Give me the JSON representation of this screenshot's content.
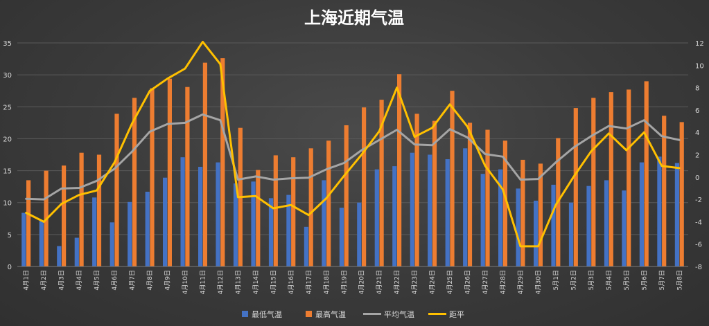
{
  "chart_data": {
    "type": "bar",
    "title": "上海近期气温",
    "categories": [
      "4月1日",
      "4月2日",
      "4月3日",
      "4月4日",
      "4月5日",
      "4月6日",
      "4月7日",
      "4月8日",
      "4月9日",
      "4月10日",
      "4月11日",
      "4月12日",
      "4月13日",
      "4月14日",
      "4月15日",
      "4月16日",
      "4月17日",
      "4月18日",
      "4月19日",
      "4月20日",
      "4月21日",
      "4月22日",
      "4月23日",
      "4月24日",
      "4月25日",
      "4月26日",
      "4月27日",
      "4月28日",
      "4月29日",
      "4月30日",
      "5月1日",
      "5月2日",
      "5月3日",
      "5月4日",
      "5月5日",
      "5月6日",
      "5月7日",
      "5月8日"
    ],
    "ylim": [
      0,
      35
    ],
    "y_ticks": [
      0,
      5,
      10,
      15,
      20,
      25,
      30,
      35
    ],
    "y2lim": [
      -8,
      12
    ],
    "y2_ticks": [
      -8,
      -6,
      -4,
      -2,
      0,
      2,
      4,
      6,
      8,
      10,
      12
    ],
    "grid": true,
    "legend_position": "bottom",
    "series": [
      {
        "name": "最低气温",
        "kind": "bar",
        "axis": "left",
        "color": "#4472C4",
        "values": [
          8.4,
          7.1,
          3.2,
          4.5,
          10.8,
          6.9,
          10.1,
          11.7,
          13.9,
          17.1,
          15.6,
          16.3,
          13.0,
          13.3,
          10.7,
          11.2,
          6.2,
          13.5,
          9.2,
          10.0,
          15.2,
          15.7,
          17.8,
          17.5,
          16.8,
          18.5,
          14.5,
          15.2,
          12.2,
          10.3,
          12.8,
          10.0,
          12.6,
          13.5,
          11.9,
          16.3,
          17.2,
          16.2
        ]
      },
      {
        "name": "最高气温",
        "kind": "bar",
        "axis": "left",
        "color": "#ED7D31",
        "values": [
          13.5,
          15.0,
          15.8,
          17.8,
          17.5,
          23.9,
          26.4,
          27.9,
          29.4,
          28.1,
          31.9,
          32.6,
          21.7,
          15.1,
          17.4,
          17.1,
          18.5,
          19.7,
          22.1,
          24.9,
          26.1,
          30.1,
          23.9,
          22.8,
          27.5,
          22.5,
          21.4,
          19.7,
          16.7,
          16.1,
          20.1,
          24.8,
          26.4,
          27.3,
          27.7,
          29.0,
          23.6,
          22.6
        ]
      },
      {
        "name": "平均气温",
        "kind": "line",
        "axis": "left",
        "color": "#A5A5A5",
        "values": [
          10.6,
          10.5,
          12.2,
          12.3,
          13.4,
          15.3,
          18.0,
          21.1,
          22.3,
          22.5,
          23.8,
          22.9,
          13.6,
          14.1,
          13.6,
          13.8,
          13.9,
          15.2,
          16.2,
          18.2,
          19.8,
          21.4,
          19.1,
          19.0,
          21.5,
          20.2,
          17.6,
          17.2,
          13.6,
          13.7,
          16.3,
          18.6,
          20.4,
          22.0,
          21.6,
          22.9,
          20.4,
          19.8
        ]
      },
      {
        "name": "距平",
        "kind": "line",
        "axis": "right",
        "color": "#FFC000",
        "values": [
          -3.2,
          -4.0,
          -2.4,
          -1.6,
          -1.2,
          1.3,
          4.8,
          7.7,
          8.8,
          9.7,
          12.1,
          10.1,
          -1.8,
          -1.7,
          -2.8,
          -2.5,
          -3.4,
          -1.9,
          0.1,
          2.0,
          4.1,
          8.0,
          3.6,
          4.4,
          6.5,
          4.5,
          1.0,
          -1.1,
          -6.2,
          -6.2,
          -2.5,
          0.0,
          2.3,
          3.9,
          2.4,
          4.0,
          1.0,
          0.8
        ]
      }
    ]
  }
}
